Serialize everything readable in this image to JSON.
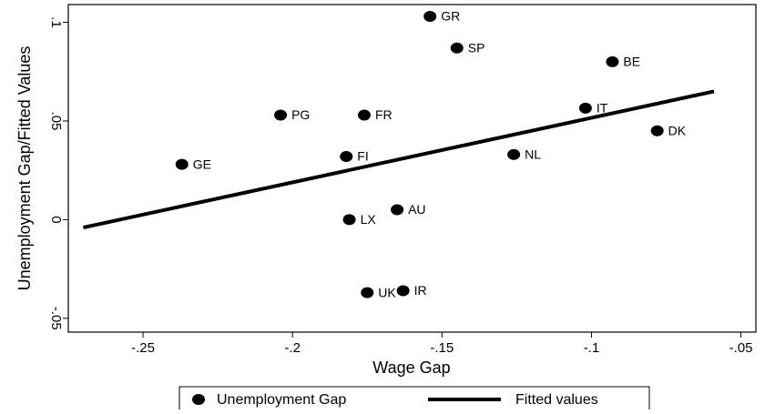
{
  "chart_data": {
    "type": "scatter",
    "x_label": "Wage Gap",
    "y_label": "Unemployment Gap/Fitted Values",
    "xlim": [
      -0.275,
      -0.045
    ],
    "ylim": [
      -0.057,
      0.109
    ],
    "xticks": [
      {
        "value": -0.25,
        "label": "-.25"
      },
      {
        "value": -0.2,
        "label": "-.2"
      },
      {
        "value": -0.15,
        "label": "-.15"
      },
      {
        "value": -0.1,
        "label": "-.1"
      },
      {
        "value": -0.05,
        "label": "-.05"
      }
    ],
    "yticks": [
      {
        "value": -0.05,
        "label": "-.05"
      },
      {
        "value": 0,
        "label": "0"
      },
      {
        "value": 0.05,
        "label": ".05"
      },
      {
        "value": 0.1,
        "label": ".1"
      }
    ],
    "grid": false,
    "legend": "bottom",
    "series": [
      {
        "name": "Unemployment Gap",
        "mode": "markers",
        "color": "#000000",
        "labels": [
          "GR",
          "SP",
          "BE",
          "PG",
          "FR",
          "IT",
          "DK",
          "NL",
          "FI",
          "GE",
          "AU",
          "LX",
          "UK",
          "IR"
        ],
        "x": [
          -0.154,
          -0.145,
          -0.093,
          -0.204,
          -0.176,
          -0.102,
          -0.078,
          -0.126,
          -0.182,
          -0.237,
          -0.165,
          -0.181,
          -0.175,
          -0.163
        ],
        "values": [
          0.103,
          0.087,
          0.08,
          0.053,
          0.053,
          0.0565,
          0.045,
          0.033,
          0.032,
          0.028,
          0.005,
          0.0,
          -0.037,
          -0.036
        ]
      },
      {
        "name": "Fitted values",
        "mode": "line",
        "color": "#000000",
        "x": [
          -0.27,
          -0.059
        ],
        "values": [
          -0.004,
          0.065
        ]
      }
    ]
  }
}
